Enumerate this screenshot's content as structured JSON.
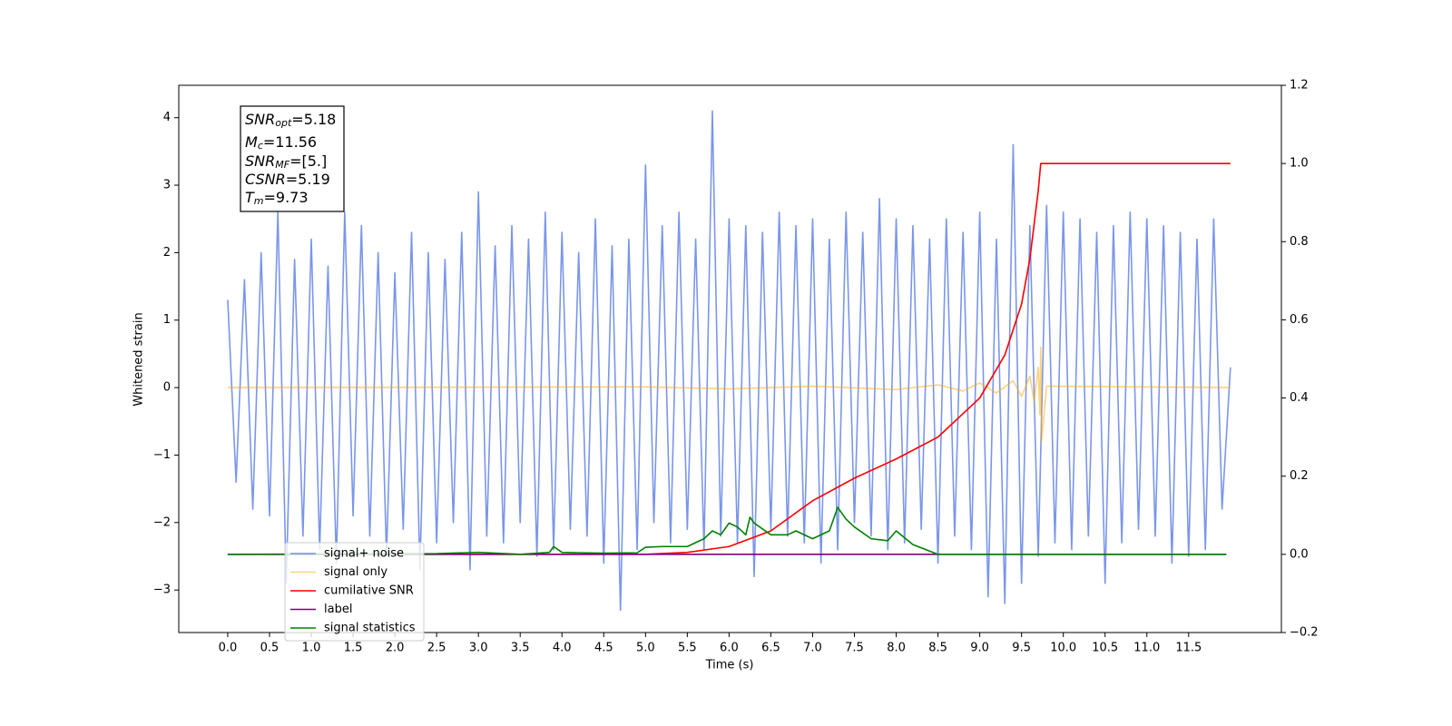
{
  "chart_data": {
    "type": "line",
    "xlabel": "Time (s)",
    "ylabel": "Whitened strain",
    "xlim": [
      -0.586,
      12.61
    ],
    "ylim": [
      -3.63,
      4.48
    ],
    "y2lim": [
      -0.2,
      1.2
    ],
    "xticks": [
      {
        "value": 0,
        "label": "0.0"
      },
      0.5,
      {
        "value": 1,
        "label": "1.0"
      },
      1.5,
      {
        "value": 2,
        "label": "2.0"
      },
      2.5,
      {
        "value": 3,
        "label": "3.0"
      },
      3.5,
      {
        "value": 4,
        "label": "4.0"
      },
      4.5,
      {
        "value": 5,
        "label": "5.0"
      },
      5.5,
      {
        "value": 6,
        "label": "6.0"
      },
      6.5,
      {
        "value": 7,
        "label": "7.0"
      },
      7.5,
      {
        "value": 8,
        "label": "8.0"
      },
      8.5,
      {
        "value": 9,
        "label": "9.0"
      },
      9.5,
      {
        "value": 10,
        "label": "10.0"
      },
      10.5,
      {
        "value": 11,
        "label": "11.0"
      },
      11.5
    ],
    "yticks": [
      {
        "value": -3,
        "label": "−3"
      },
      {
        "value": -2,
        "label": "−2"
      },
      {
        "value": -1,
        "label": "−1"
      },
      0,
      1,
      2,
      3,
      4
    ],
    "y2ticks": [
      {
        "value": -0.2,
        "label": "−0.2"
      },
      {
        "value": 0,
        "label": "0.0"
      },
      0.2,
      0.4,
      0.6,
      0.8,
      {
        "value": 1,
        "label": "1.0"
      },
      1.2
    ],
    "legend": "lower left",
    "annotation": [
      {
        "text": "SNR",
        "sub": "opt",
        "rest": "=5.18"
      },
      {
        "text": "M",
        "sub": "c",
        "rest": "=11.56"
      },
      {
        "text": "SNR",
        "sub": "MF",
        "rest": "=[5.]"
      },
      {
        "text": "CSNR",
        "rest": "=5.19"
      },
      {
        "text": "T",
        "sub": "m",
        "rest": "=9.73"
      }
    ],
    "series": [
      {
        "name": "signal+ noise",
        "color": "#4169e1",
        "alpha": 0.7,
        "x": [
          0,
          0.1,
          0.2,
          0.3,
          0.4,
          0.5,
          0.6,
          0.7,
          0.8,
          0.9,
          1,
          1.1,
          1.2,
          1.3,
          1.4,
          1.5,
          1.6,
          1.7,
          1.8,
          1.9,
          2,
          2.1,
          2.2,
          2.3,
          2.4,
          2.5,
          2.6,
          2.7,
          2.8,
          2.9,
          3,
          3.1,
          3.2,
          3.3,
          3.4,
          3.5,
          3.6,
          3.7,
          3.8,
          3.9,
          4,
          4.1,
          4.2,
          4.3,
          4.4,
          4.5,
          4.6,
          4.7,
          4.8,
          4.9,
          5,
          5.1,
          5.2,
          5.3,
          5.4,
          5.5,
          5.6,
          5.7,
          5.8,
          5.9,
          6,
          6.1,
          6.2,
          6.3,
          6.4,
          6.5,
          6.6,
          6.7,
          6.8,
          6.9,
          7,
          7.1,
          7.2,
          7.3,
          7.4,
          7.5,
          7.6,
          7.7,
          7.8,
          7.9,
          8,
          8.1,
          8.2,
          8.3,
          8.4,
          8.5,
          8.6,
          8.7,
          8.8,
          8.9,
          9,
          9.1,
          9.2,
          9.3,
          9.4,
          9.5,
          9.6,
          9.7,
          9.8,
          9.9,
          10,
          10.1,
          10.2,
          10.3,
          10.4,
          10.5,
          10.6,
          10.7,
          10.8,
          10.9,
          11,
          11.1,
          11.2,
          11.3,
          11.4,
          11.5,
          11.6,
          11.7,
          11.8,
          11.9,
          12
        ],
        "values": [
          1.3,
          -1.4,
          1.6,
          -1.8,
          2.0,
          -1.9,
          2.6,
          -2.9,
          1.9,
          -2.2,
          2.2,
          -2.4,
          1.8,
          -2.6,
          2.6,
          -1.9,
          2.4,
          -2.2,
          2.0,
          -2.5,
          1.7,
          -2.1,
          2.3,
          -2.7,
          2.0,
          -2.3,
          1.9,
          -2.0,
          2.3,
          -2.7,
          2.9,
          -2.2,
          2.1,
          -2.3,
          2.4,
          -2.0,
          2.2,
          -2.5,
          2.6,
          -2.4,
          2.3,
          -2.1,
          2.0,
          -2.2,
          2.5,
          -2.6,
          2.1,
          -3.3,
          2.2,
          -2.4,
          3.3,
          -2.0,
          2.4,
          -2.3,
          2.6,
          -2.1,
          2.2,
          -2.4,
          4.1,
          -2.2,
          2.5,
          -2.3,
          2.4,
          -2.8,
          2.3,
          -2.1,
          2.6,
          -2.2,
          2.4,
          -2.3,
          2.5,
          -2.6,
          2.2,
          -2.4,
          2.6,
          -2.0,
          2.3,
          -2.2,
          2.8,
          -2.4,
          2.5,
          -2.3,
          2.4,
          -2.1,
          2.2,
          -2.6,
          2.5,
          -2.2,
          2.3,
          -2.4,
          2.6,
          -3.1,
          2.2,
          -3.2,
          3.6,
          -2.9,
          2.4,
          -2.5,
          2.7,
          -2.3,
          2.6,
          -2.4,
          2.5,
          -2.2,
          2.3,
          -2.9,
          2.4,
          -2.3,
          2.6,
          -2.1,
          2.5,
          -2.2,
          2.4,
          -2.6,
          2.3,
          -2.5,
          2.2,
          -2.4,
          2.5,
          -1.8,
          0.3
        ]
      },
      {
        "name": "signal only",
        "color": "#ffa500",
        "alpha": 0.5,
        "x": [
          0,
          5.0,
          6.0,
          7.0,
          8.0,
          8.5,
          8.8,
          9.0,
          9.2,
          9.4,
          9.5,
          9.6,
          9.65,
          9.7,
          9.72,
          9.73,
          9.74,
          9.8,
          12.0
        ],
        "values": [
          0,
          0.01,
          -0.02,
          0.02,
          -0.03,
          0.04,
          -0.05,
          0.07,
          -0.08,
          0.1,
          -0.13,
          0.17,
          -0.2,
          0.3,
          -0.4,
          0.6,
          -0.8,
          0.02,
          0
        ]
      },
      {
        "name": "cumilative SNR",
        "color": "#ff0000",
        "alpha": 1,
        "axis": "y2",
        "x": [
          0,
          5.0,
          5.5,
          6.0,
          6.5,
          7.0,
          7.5,
          8.0,
          8.5,
          9.0,
          9.3,
          9.5,
          9.6,
          9.7,
          9.73,
          12.0
        ],
        "values": [
          0,
          0,
          0.005,
          0.02,
          0.06,
          0.137,
          0.195,
          0.244,
          0.3,
          0.4,
          0.51,
          0.64,
          0.756,
          0.93,
          1.0,
          1.0
        ]
      },
      {
        "name": "label",
        "color": "#800080",
        "alpha": 1,
        "axis": "y2",
        "x": [
          0,
          11.95
        ],
        "values": [
          0,
          0
        ]
      },
      {
        "name": "signal statistics",
        "color": "#008000",
        "alpha": 1,
        "axis": "y2",
        "x": [
          0,
          2.5,
          3.0,
          3.5,
          3.85,
          3.9,
          4.0,
          4.5,
          4.9,
          5.0,
          5.2,
          5.5,
          5.7,
          5.8,
          5.9,
          6.0,
          6.1,
          6.2,
          6.25,
          6.3,
          6.5,
          6.7,
          6.8,
          7.0,
          7.2,
          7.3,
          7.4,
          7.5,
          7.7,
          7.9,
          8.0,
          8.2,
          8.5,
          9.0,
          9.5,
          10.0,
          11.95
        ],
        "values": [
          0,
          0.002,
          0.005,
          0,
          0.005,
          0.02,
          0.005,
          0.003,
          0.004,
          0.018,
          0.02,
          0.02,
          0.04,
          0.06,
          0.05,
          0.08,
          0.07,
          0.05,
          0.095,
          0.08,
          0.05,
          0.05,
          0.06,
          0.04,
          0.06,
          0.12,
          0.09,
          0.07,
          0.04,
          0.035,
          0.06,
          0.025,
          0,
          0,
          0,
          0,
          0
        ]
      }
    ]
  }
}
